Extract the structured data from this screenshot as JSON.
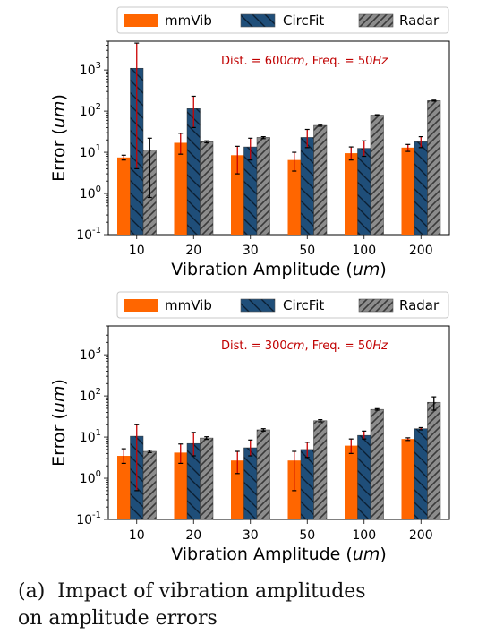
{
  "chart_data": [
    {
      "type": "bar",
      "xlabel": "Vibration Amplitude (um)",
      "ylabel": "Error (um)",
      "yscale": "log",
      "ylim": [
        0.1,
        5000
      ],
      "annotation": "Dist. = 600cm, Freq. = 50Hz",
      "legend": {
        "placement": "top",
        "entries": [
          "mmVib",
          "CircFit",
          "Radar"
        ]
      },
      "categories": [
        "10",
        "20",
        "30",
        "50",
        "100",
        "200"
      ],
      "yticks": [
        "10^-1",
        "10^0",
        "10^1",
        "10^2",
        "10^3"
      ],
      "series": [
        {
          "name": "mmVib",
          "values": [
            7.5,
            17,
            8.5,
            6.5,
            9.5,
            13
          ],
          "err_low": [
            6.5,
            9,
            3,
            3.5,
            6.5,
            10.5
          ],
          "err_high": [
            8.5,
            29,
            14,
            10,
            13.5,
            15.5
          ]
        },
        {
          "name": "CircFit",
          "values": [
            1100,
            115,
            13.5,
            23,
            12.5,
            18
          ],
          "err_low": [
            4,
            40,
            6.5,
            13,
            8,
            13
          ],
          "err_high": [
            4500,
            230,
            22,
            36,
            19,
            24
          ]
        },
        {
          "name": "Radar",
          "values": [
            11.5,
            18,
            23,
            45,
            80,
            180
          ],
          "err_low": [
            0.8,
            17,
            21.5,
            43,
            78,
            175
          ],
          "err_high": [
            22,
            19,
            24,
            47,
            82,
            185
          ]
        }
      ]
    },
    {
      "type": "bar",
      "xlabel": "Vibration Amplitude (um)",
      "ylabel": "Error (um)",
      "yscale": "log",
      "ylim": [
        0.1,
        5000
      ],
      "annotation": "Dist. = 300cm, Freq. = 50Hz",
      "legend": {
        "placement": "top",
        "entries": [
          "mmVib",
          "CircFit",
          "Radar"
        ]
      },
      "categories": [
        "10",
        "20",
        "30",
        "50",
        "100",
        "200"
      ],
      "yticks": [
        "10^-1",
        "10^0",
        "10^1",
        "10^2",
        "10^3"
      ],
      "series": [
        {
          "name": "mmVib",
          "values": [
            3.5,
            4.2,
            2.7,
            2.7,
            6.2,
            9
          ],
          "err_low": [
            2.3,
            2.3,
            1.3,
            0.5,
            4,
            8.3
          ],
          "err_high": [
            5.2,
            6.8,
            4.5,
            4.5,
            9,
            9.6
          ]
        },
        {
          "name": "CircFit",
          "values": [
            10.5,
            7,
            5.5,
            5,
            11,
            16
          ],
          "err_low": [
            0.5,
            3.5,
            3.5,
            3.2,
            9,
            15
          ],
          "err_high": [
            20,
            13,
            8.5,
            7.5,
            14,
            17
          ]
        },
        {
          "name": "Radar",
          "values": [
            4.5,
            9.5,
            15,
            25,
            47,
            70
          ],
          "err_low": [
            4.2,
            8.8,
            14,
            23.5,
            45,
            45
          ],
          "err_high": [
            4.8,
            10.2,
            16,
            26.5,
            49,
            95
          ]
        }
      ]
    }
  ],
  "caption": {
    "label": "(a)",
    "line1": "Impact of vibration amplitudes",
    "line2": "on amplitude errors"
  },
  "colors": {
    "mmVib": "#ff6600",
    "CircFit": "#1f4e79",
    "Radar": "#8c8c8c",
    "errorbar": "#cc0000",
    "annotation": "#c00000"
  }
}
